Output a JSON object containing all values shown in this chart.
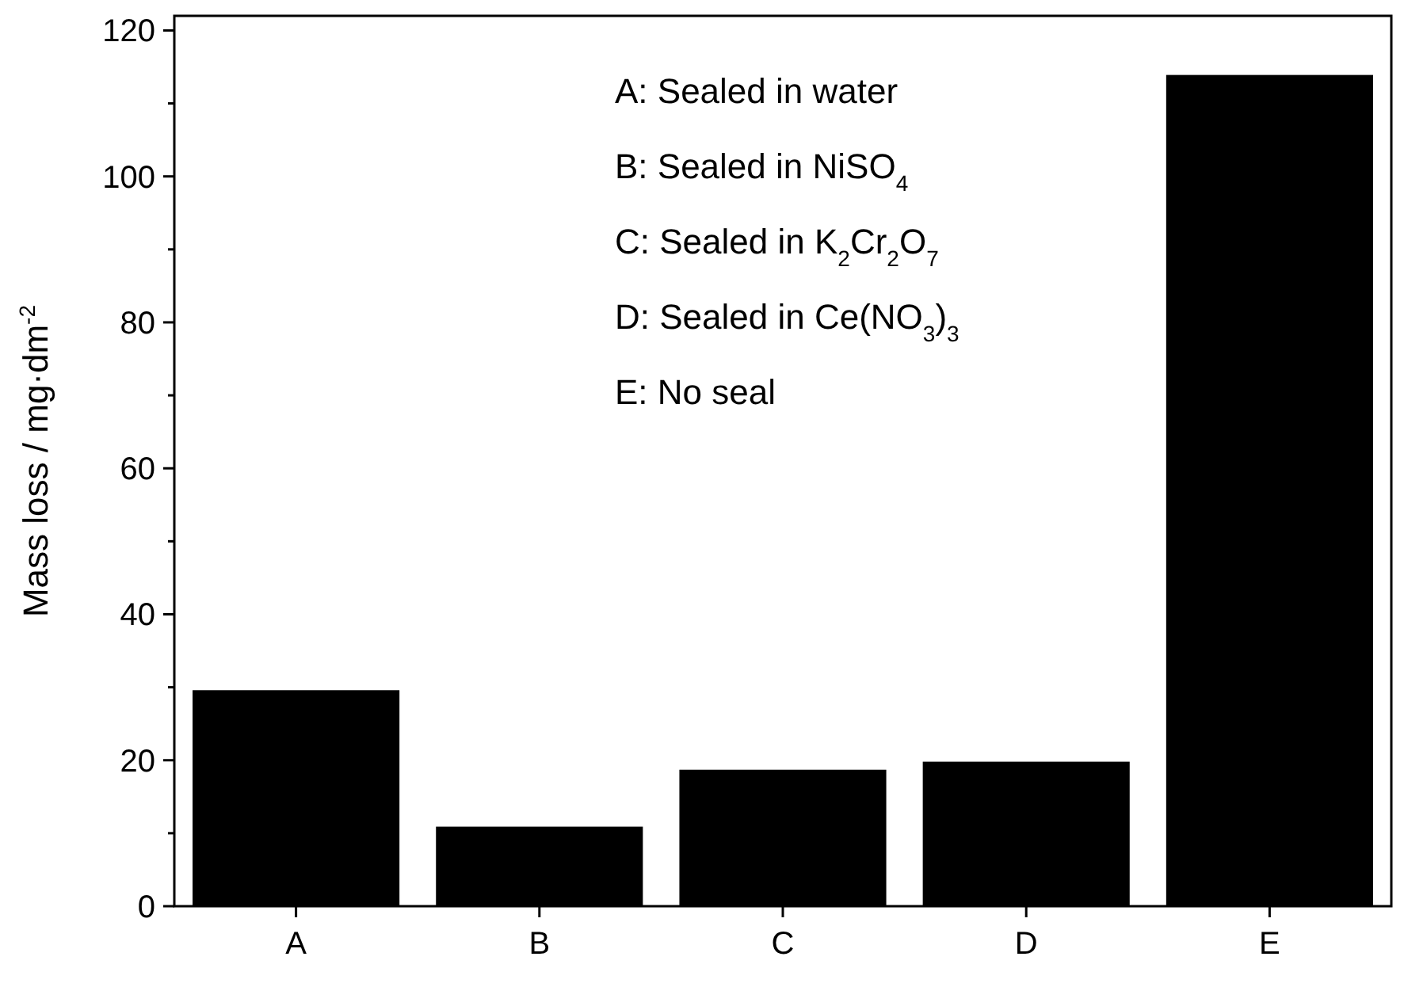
{
  "chart_data": {
    "type": "bar",
    "ylabel": "Mass loss / mg·dm$^{-2}$",
    "categories": [
      "A",
      "B",
      "C",
      "D",
      "E"
    ],
    "values": [
      29.6,
      10.9,
      18.7,
      19.8,
      113.9
    ],
    "color": "#000000",
    "ylim": [
      0,
      122
    ],
    "yticks": [
      0,
      {
        "value": 10,
        "label": null
      },
      20,
      {
        "value": 30,
        "label": null
      },
      40,
      {
        "value": 50,
        "label": null
      },
      60,
      {
        "value": 70,
        "label": null
      },
      80,
      {
        "value": 90,
        "label": null
      },
      100,
      {
        "value": 110,
        "label": null
      },
      120
    ],
    "grid": false,
    "annotations": [
      "A: Sealed in water",
      "B: Sealed in NiSO$_{4}$",
      "C: Sealed in K$_{2}$Cr$_{2}$O$_{7}$",
      "D: Sealed in Ce(NO$_{3}$)$_{3}$",
      "E: No seal"
    ]
  }
}
